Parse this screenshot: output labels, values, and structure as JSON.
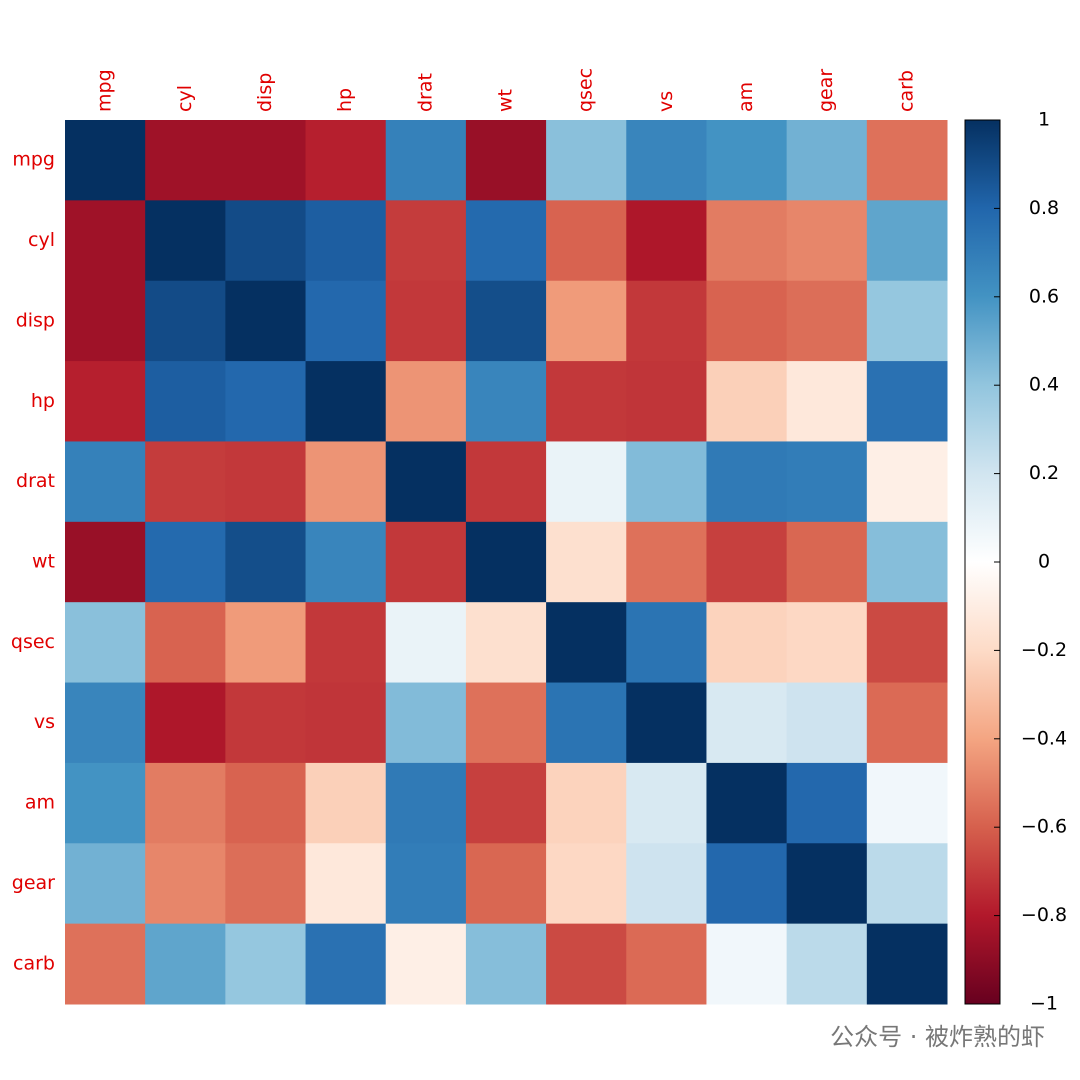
{
  "chart_data": {
    "type": "heatmap",
    "categories": [
      "mpg",
      "cyl",
      "disp",
      "hp",
      "drat",
      "wt",
      "qsec",
      "vs",
      "am",
      "gear",
      "carb"
    ],
    "values": [
      [
        1,
        -0.85,
        -0.85,
        -0.78,
        0.68,
        -0.87,
        0.42,
        0.66,
        0.6,
        0.48,
        -0.55
      ],
      [
        -0.85,
        1,
        0.9,
        0.83,
        -0.7,
        0.78,
        -0.59,
        -0.81,
        -0.52,
        -0.49,
        0.53
      ],
      [
        -0.85,
        0.9,
        1,
        0.79,
        -0.71,
        0.89,
        -0.43,
        -0.71,
        -0.59,
        -0.56,
        0.39
      ],
      [
        -0.78,
        0.83,
        0.79,
        1,
        -0.45,
        0.66,
        -0.71,
        -0.72,
        -0.24,
        -0.13,
        0.75
      ],
      [
        0.68,
        -0.7,
        -0.71,
        -0.45,
        1,
        -0.71,
        0.09,
        0.44,
        0.71,
        0.7,
        -0.09
      ],
      [
        -0.87,
        0.78,
        0.89,
        0.66,
        -0.71,
        1,
        -0.17,
        -0.55,
        -0.69,
        -0.58,
        0.43
      ],
      [
        0.42,
        -0.59,
        -0.43,
        -0.71,
        0.09,
        -0.17,
        1,
        0.74,
        -0.23,
        -0.21,
        -0.66
      ],
      [
        0.66,
        -0.81,
        -0.71,
        -0.72,
        0.44,
        -0.55,
        0.74,
        1,
        0.17,
        0.21,
        -0.57
      ],
      [
        0.6,
        -0.52,
        -0.59,
        -0.24,
        0.71,
        -0.69,
        -0.23,
        0.17,
        1,
        0.79,
        0.06
      ],
      [
        0.48,
        -0.49,
        -0.56,
        -0.13,
        0.7,
        -0.58,
        -0.21,
        0.21,
        0.79,
        1,
        0.27
      ],
      [
        -0.55,
        0.53,
        0.39,
        0.75,
        -0.09,
        0.43,
        -0.66,
        -0.57,
        0.06,
        0.27,
        1
      ]
    ],
    "label_color": "#e00000",
    "colorscale": [
      "#67001F",
      "#B2182B",
      "#D6604D",
      "#F4A582",
      "#FDDBC7",
      "#FFFFFF",
      "#D1E5F0",
      "#92C5DE",
      "#4393C3",
      "#2166AC",
      "#053061"
    ],
    "colorbar_lim": [
      -1,
      1
    ],
    "colorbar_ticks": [
      {
        "value": -1,
        "label": "−1"
      },
      {
        "value": -0.8,
        "label": "−0.8"
      },
      {
        "value": -0.6,
        "label": "−0.6"
      },
      {
        "value": -0.4,
        "label": "−0.4"
      },
      {
        "value": -0.2,
        "label": "−0.2"
      },
      0,
      0.2,
      0.4,
      0.6,
      0.8,
      1
    ],
    "watermark": "公众号 · 被炸熟的虾"
  }
}
